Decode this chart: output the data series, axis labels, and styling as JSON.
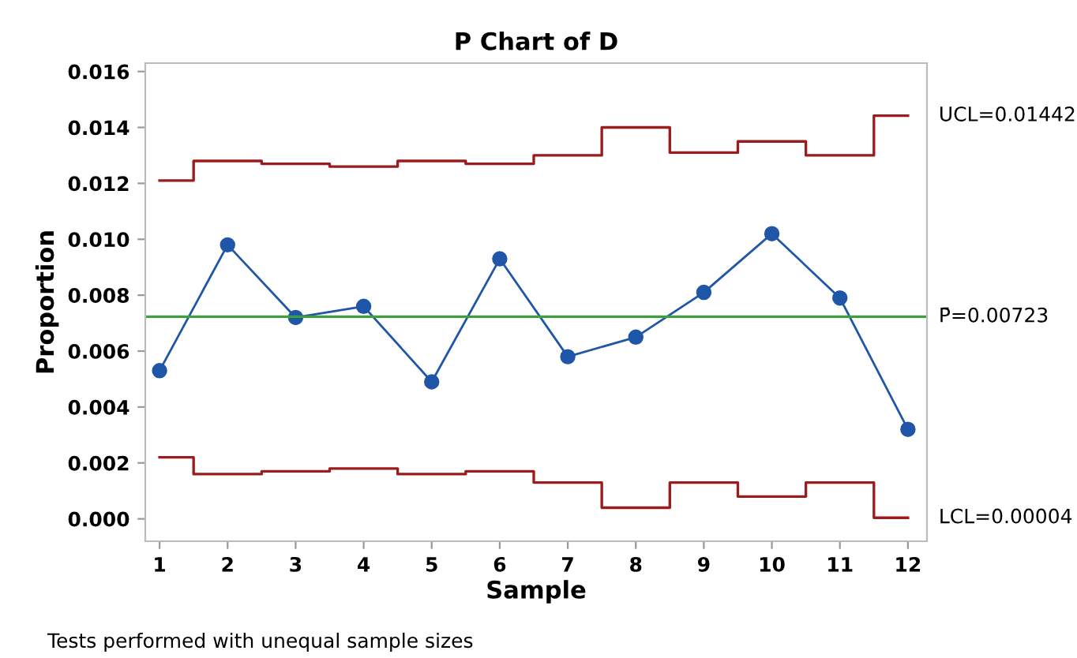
{
  "chart_data": {
    "type": "line",
    "title": "P Chart of D",
    "xlabel": "Sample",
    "ylabel": "Proportion",
    "x": [
      1,
      2,
      3,
      4,
      5,
      6,
      7,
      8,
      9,
      10,
      11,
      12
    ],
    "series": [
      {
        "name": "UCL=0.01442",
        "type": "step",
        "color": "#9b1c1c",
        "marker": "none",
        "values": [
          0.0121,
          0.0128,
          0.0127,
          0.0126,
          0.0128,
          0.0127,
          0.013,
          0.014,
          0.0131,
          0.0135,
          0.013,
          0.01442
        ]
      },
      {
        "name": "LCL=0.00004",
        "type": "step",
        "color": "#9b1c1c",
        "marker": "none",
        "values": [
          0.0022,
          0.0016,
          0.0017,
          0.0018,
          0.0016,
          0.0017,
          0.0013,
          0.0004,
          0.0013,
          0.0008,
          0.0013,
          4e-05
        ]
      },
      {
        "color": "#1f56a8",
        "marker": "circle",
        "values": [
          0.0053,
          0.0098,
          0.0072,
          0.0076,
          0.0049,
          0.0093,
          0.0058,
          0.0065,
          0.0081,
          0.0102,
          0.0079,
          0.0032
        ]
      }
    ],
    "ref_lines": [
      {
        "axis": "y",
        "value": 0.00723,
        "label": "P̄=0.00723",
        "color": "#3ca03c"
      }
    ],
    "xlim": [
      0.79,
      12.28
    ],
    "xticks": [
      1,
      2,
      3,
      4,
      5,
      6,
      7,
      8,
      9,
      10,
      11,
      12
    ],
    "ylim": [
      -0.0008,
      0.0163
    ],
    "yticks": [
      {
        "value": 0,
        "label": "0.000"
      },
      {
        "value": 0.002,
        "label": "0.002"
      },
      {
        "value": 0.004,
        "label": "0.004"
      },
      {
        "value": 0.006,
        "label": "0.006"
      },
      {
        "value": 0.008,
        "label": "0.008"
      },
      {
        "value": 0.01,
        "label": "0.010"
      },
      {
        "value": 0.012,
        "label": "0.012"
      },
      {
        "value": 0.014,
        "label": "0.014"
      },
      {
        "value": 0.016,
        "label": "0.016"
      }
    ],
    "grid": false,
    "legend": false,
    "annotations": [
      "Tests performed with unequal sample sizes"
    ]
  }
}
